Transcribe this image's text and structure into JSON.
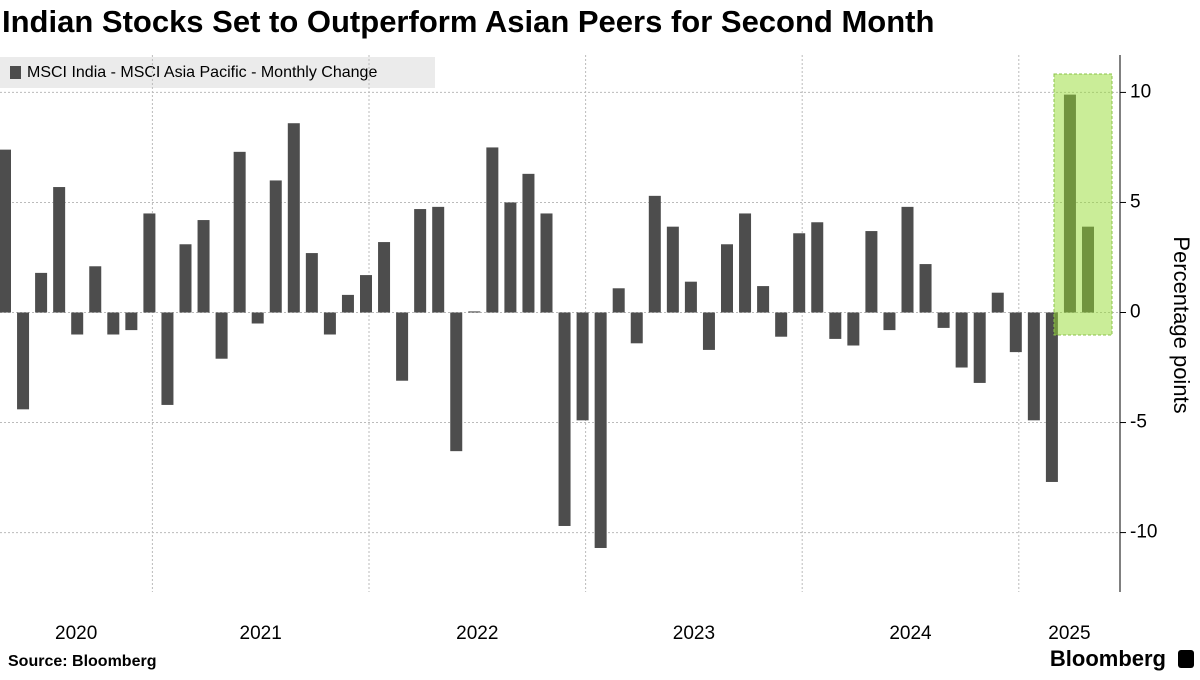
{
  "chart_data": {
    "type": "bar",
    "title": "Indian Stocks Set to Outperform Asian Peers for Second Month",
    "series": [
      {
        "name": "MSCI India - MSCI Asia Pacific - Monthly Change",
        "color": "#4d4d4d",
        "values": [
          7.4,
          -4.4,
          1.8,
          5.7,
          -1.0,
          2.1,
          -1.0,
          -0.8,
          4.5,
          -4.2,
          3.1,
          4.2,
          -2.1,
          7.3,
          -0.5,
          6.0,
          8.6,
          2.7,
          -1.0,
          0.8,
          1.7,
          3.2,
          -3.1,
          4.7,
          4.8,
          -6.3,
          0.05,
          7.5,
          5.0,
          6.3,
          4.5,
          -9.7,
          -4.9,
          -10.7,
          1.1,
          -1.4,
          5.3,
          3.9,
          1.4,
          -1.7,
          3.1,
          4.5,
          1.2,
          -1.1,
          3.6,
          4.1,
          -1.2,
          -1.5,
          3.7,
          -0.8,
          4.8,
          2.2,
          -0.7,
          -2.5,
          -3.2,
          0.9,
          -1.8,
          -4.9,
          -7.7,
          9.9,
          3.9
        ]
      }
    ],
    "year_labels": [
      "2020",
      "2021",
      "2022",
      "2023",
      "2024",
      "2025"
    ],
    "ylabel": "Percentage points",
    "ylim": [
      -12.7,
      11.7
    ],
    "yticks": [
      10,
      5,
      0,
      -5,
      -10
    ],
    "grid": true,
    "source": "Source: Bloomberg",
    "brand": "Bloomberg"
  }
}
